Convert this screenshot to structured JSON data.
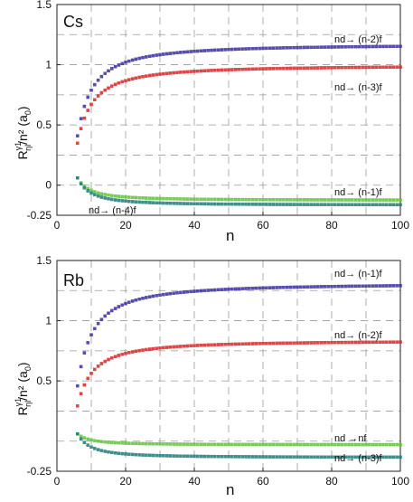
{
  "chart_data": [
    {
      "type": "scatter",
      "title": "Cs",
      "xlabel": "n",
      "ylabel_main": "R",
      "ylabel_sup": "γ1",
      "ylabel_sub": "ηl",
      "ylabel_rest": "/n² (a",
      "ylabel_sub2": "0",
      "ylabel_end": ")",
      "xlim": [
        0,
        100
      ],
      "ylim": [
        -0.25,
        1.5
      ],
      "xticks": [
        "0",
        "20",
        "40",
        "60",
        "80",
        "100"
      ],
      "yticks": [
        "-0.25",
        "0",
        "0.5",
        "1",
        "1.5"
      ],
      "grid": "dashed",
      "n_start": 6,
      "n_end": 100,
      "series": [
        {
          "name": "nd→ (n-2)f",
          "color": "#3a2f9c",
          "values": {
            "a": 1.17,
            "b": 4.6,
            "c": 0
          },
          "label_parts": [
            "nd",
            "→",
            " (n-2)f"
          ]
        },
        {
          "name": "nd→ (n-3)f",
          "color": "#d92626",
          "values": {
            "a": 0.995,
            "b": 4.6,
            "c": 0.05
          },
          "label_parts": [
            "nd",
            "→",
            " (n-3)f"
          ]
        },
        {
          "name": "nd→ (n-1)f",
          "color": "#5fc23a",
          "values": {
            "a": -0.125,
            "b": -1.2,
            "c": 0
          },
          "label_parts": [
            "nd",
            "→",
            " (n-1)f"
          ]
        },
        {
          "name": "nd→ (n-4)f",
          "color": "#1f7a7a",
          "values": {
            "a": -0.165,
            "b": -1.2,
            "c": 0
          },
          "label_parts": [
            "nd",
            "→",
            " (n-4)f"
          ]
        }
      ]
    },
    {
      "type": "scatter",
      "title": "Rb",
      "xlabel": "n",
      "ylabel_main": "R",
      "ylabel_sup": "γ1",
      "ylabel_sub": "ηl",
      "ylabel_rest": "/n² (a",
      "ylabel_sub2": "0",
      "ylabel_end": ")",
      "xlim": [
        0,
        100
      ],
      "ylim": [
        -0.25,
        1.5
      ],
      "xticks": [
        "0",
        "20",
        "40",
        "60",
        "80",
        "100"
      ],
      "yticks": [
        "-0.25",
        "0.5",
        "1",
        "1.5"
      ],
      "grid": "dashed",
      "n_start": 6,
      "n_end": 100,
      "series": [
        {
          "name": "nd→ (n-1)f",
          "color": "#3a2f9c",
          "values": {
            "a": 1.31,
            "b": 3.0,
            "c": 0
          },
          "label_parts": [
            "nd",
            "→",
            " (n-1)f"
          ]
        },
        {
          "name": "nd→ (n-2)f",
          "color": "#d92626",
          "values": {
            "a": 0.835,
            "b": 4.6,
            "c": 0.05
          },
          "label_parts": [
            "nd",
            "→",
            " (n-2)f"
          ]
        },
        {
          "name": "nd →nf",
          "color": "#5fc23a",
          "values": {
            "a": -0.03,
            "b": -1.0,
            "c": 0
          },
          "label_parts": [
            "nd",
            " →",
            "nf"
          ]
        },
        {
          "name": "nd→ (n-3)f",
          "color": "#1f7a7a",
          "values": {
            "a": -0.135,
            "b": -1.0,
            "c": 0
          },
          "label_parts": [
            "nd",
            "→",
            " (n-3)f"
          ]
        }
      ]
    }
  ]
}
